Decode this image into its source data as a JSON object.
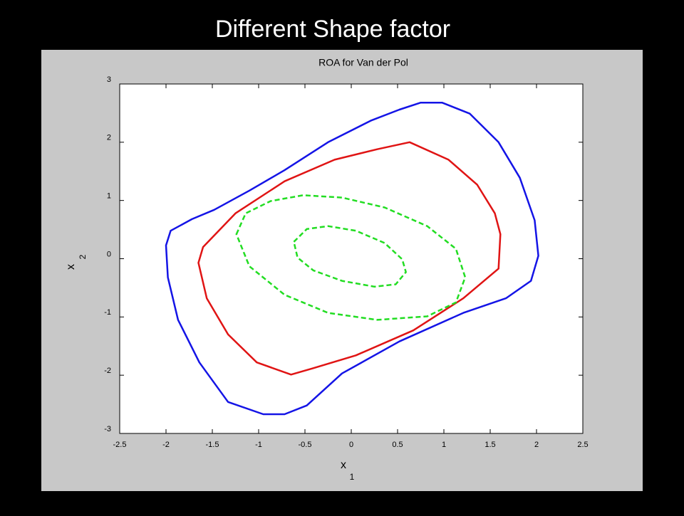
{
  "slide_title": "Different Shape factor",
  "chart_data": {
    "type": "line",
    "title": "ROA for Van der Pol",
    "xlabel": "x",
    "xlabel_subscript": "1",
    "ylabel": "x",
    "ylabel_subscript": "2",
    "xlim": [
      -2.5,
      2.5
    ],
    "ylim": [
      -3,
      3
    ],
    "xticks": [
      -2.5,
      -2,
      -1.5,
      -1,
      -0.5,
      0,
      0.5,
      1,
      1.5,
      2,
      2.5
    ],
    "yticks": [
      -3,
      -2,
      -1,
      0,
      1,
      2,
      3
    ],
    "grid": false,
    "closed": true,
    "series": [
      {
        "color": "#1414e6",
        "dashed": false,
        "x": [
          0.75,
          0.98,
          1.28,
          1.59,
          1.82,
          1.98,
          2.02,
          1.94,
          1.67,
          1.21,
          0.52,
          -0.1,
          -0.48,
          -0.72,
          -0.95,
          -1.33,
          -1.64,
          -1.87,
          -1.98,
          -2.0,
          -1.95,
          -1.72,
          -1.48,
          -1.1,
          -0.72,
          -0.25,
          0.21,
          0.52
        ],
        "values": [
          2.68,
          2.68,
          2.49,
          2.0,
          1.39,
          0.66,
          0.05,
          -0.38,
          -0.68,
          -0.93,
          -1.42,
          -1.97,
          -2.52,
          -2.67,
          -2.67,
          -2.46,
          -1.78,
          -1.05,
          -0.32,
          0.23,
          0.48,
          0.68,
          0.84,
          1.17,
          1.52,
          2.0,
          2.37,
          2.56
        ]
      },
      {
        "color": "#e01414",
        "dashed": false,
        "x": [
          0.63,
          1.05,
          1.36,
          1.55,
          1.61,
          1.59,
          1.21,
          0.67,
          0.05,
          -0.41,
          -0.65,
          -1.02,
          -1.33,
          -1.56,
          -1.65,
          -1.6,
          -1.25,
          -0.72,
          -0.18,
          0.28
        ],
        "values": [
          2.0,
          1.7,
          1.27,
          0.78,
          0.42,
          -0.17,
          -0.68,
          -1.23,
          -1.66,
          -1.88,
          -1.99,
          -1.78,
          -1.3,
          -0.68,
          -0.07,
          0.2,
          0.78,
          1.33,
          1.7,
          1.88
        ]
      },
      {
        "color": "#22dd22",
        "dashed": true,
        "x": [
          -1.24,
          -1.14,
          -0.87,
          -0.52,
          -0.1,
          0.36,
          0.82,
          1.13,
          1.23,
          1.13,
          0.82,
          0.28,
          -0.25,
          -0.72,
          -1.1
        ],
        "values": [
          0.42,
          0.78,
          0.99,
          1.09,
          1.05,
          0.88,
          0.56,
          0.17,
          -0.32,
          -0.75,
          -0.99,
          -1.05,
          -0.93,
          -0.62,
          -0.13
        ]
      },
      {
        "color": "#22dd22",
        "dashed": true,
        "x": [
          -0.62,
          -0.48,
          -0.25,
          0.05,
          0.36,
          0.55,
          0.59,
          0.48,
          0.25,
          -0.1,
          -0.41,
          -0.58
        ],
        "values": [
          0.29,
          0.51,
          0.56,
          0.48,
          0.27,
          -0.01,
          -0.23,
          -0.44,
          -0.48,
          -0.38,
          -0.2,
          0.02
        ]
      }
    ]
  }
}
